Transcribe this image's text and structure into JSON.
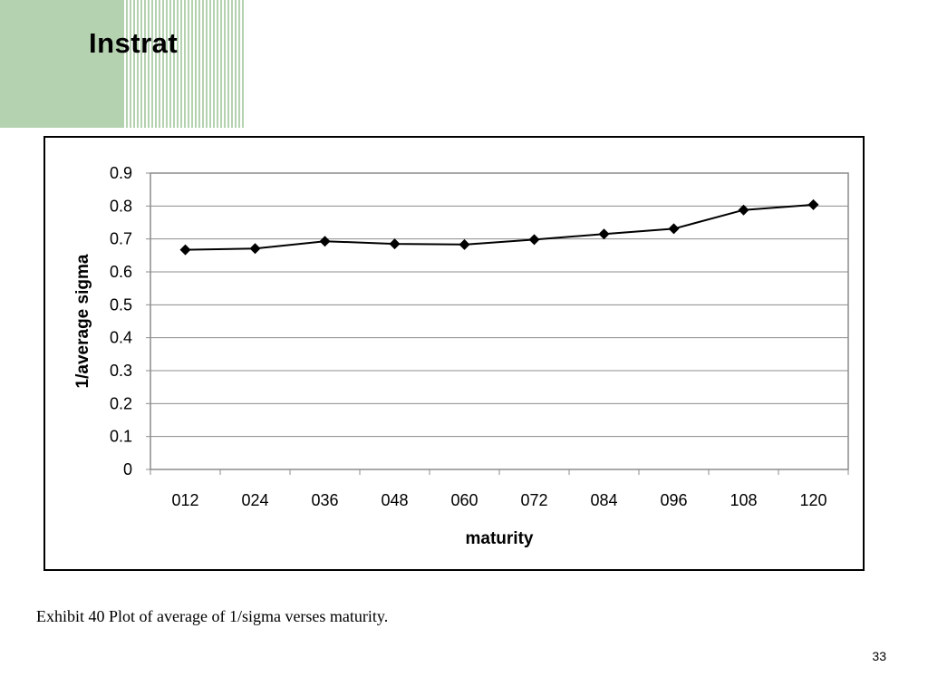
{
  "slide": {
    "title": "Instrat",
    "caption": "Exhibit 40 Plot of average of 1/sigma verses maturity.",
    "page_number": "33"
  },
  "colors": {
    "accent_green": "#b5d2b0",
    "gridline": "#8c8c8c",
    "series": "#000000"
  },
  "chart_data": {
    "type": "line",
    "title": "",
    "xlabel": "maturity",
    "ylabel": "1/average sigma",
    "categories": [
      "012",
      "024",
      "036",
      "048",
      "060",
      "072",
      "084",
      "096",
      "108",
      "120"
    ],
    "series": [
      {
        "values": [
          0.667,
          0.671,
          0.693,
          0.685,
          0.683,
          0.698,
          0.715,
          0.731,
          0.788,
          0.804
        ],
        "marker": "diamond"
      }
    ],
    "ylim": [
      0,
      0.9
    ],
    "yticks": [
      "0",
      "0.1",
      "0.2",
      "0.3",
      "0.4",
      "0.5",
      "0.6",
      "0.7",
      "0.8",
      "0.9"
    ],
    "grid": true,
    "legend": "none"
  }
}
